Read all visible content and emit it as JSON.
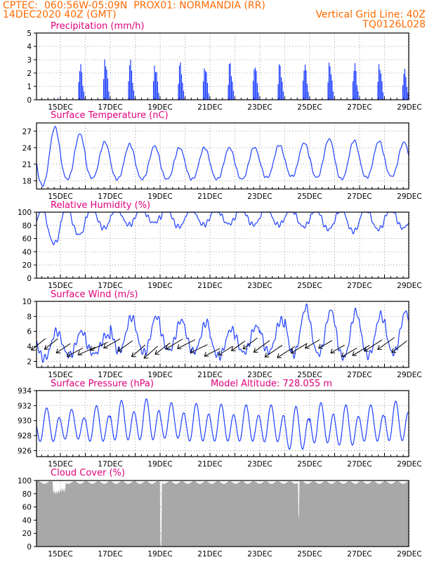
{
  "header": {
    "line1_left": "CPTEC:  060:56W-05:09N  PROX01: NORMANDIA (RR)",
    "line2_left": "14DEC2020 40Z (GMT)",
    "line2_right": "Vertical Grid Line: 40Z",
    "line3_right": "TQ0126L028"
  },
  "colors": {
    "header": "#ff6a00",
    "title": "#e0007a",
    "series": "#2040ff",
    "bars": "#2040ff",
    "cloud": "#a8a8a8",
    "arrow": "#000000",
    "grid": "#888888"
  },
  "chart_data": [
    {
      "id": "precip",
      "type": "bar",
      "title": "Precipitation (mm/h)",
      "ylim": [
        0,
        5
      ],
      "yticks": [
        "0",
        "1",
        "2",
        "3",
        "4",
        "5"
      ],
      "xlabels": [
        "15DEC",
        "17DEC",
        "19DEC",
        "21DEC",
        "23DEC",
        "25DEC",
        "27DEC",
        "29DEC"
      ],
      "daily_peaks_mm_h": [
        0.3,
        2.8,
        3.2,
        3.1,
        2.8,
        2.9,
        2.7,
        2.9,
        2.8,
        2.8,
        2.9,
        2.9,
        2.9,
        2.8,
        2.4,
        1.3
      ]
    },
    {
      "id": "temp",
      "type": "line",
      "title": "Surface Temperature (nC)",
      "ylim": [
        16.5,
        28.5
      ],
      "yticks": [
        "18",
        "21",
        "24",
        "27"
      ],
      "xlabels": [
        "15DEC",
        "17DEC",
        "19DEC",
        "21DEC",
        "23DEC",
        "25DEC",
        "27DEC",
        "29DEC"
      ],
      "daily_max": [
        27.7,
        26.5,
        25.0,
        24.6,
        24.3,
        24.0,
        24.0,
        24.0,
        24.1,
        24.5,
        24.9,
        25.6,
        25.3,
        25.2,
        25.0,
        25.0
      ],
      "daily_min": [
        17.2,
        18.3,
        18.5,
        18.3,
        18.3,
        18.3,
        18.3,
        18.3,
        18.3,
        18.6,
        18.8,
        18.6,
        18.3,
        18.6,
        18.8,
        18.8
      ]
    },
    {
      "id": "rh",
      "type": "line",
      "title": "Relative Humidity (%)",
      "ylim": [
        0,
        100
      ],
      "yticks": [
        "0",
        "20",
        "40",
        "60",
        "80",
        "100"
      ],
      "xlabels": [
        "15DEC",
        "17DEC",
        "19DEC",
        "21DEC",
        "23DEC",
        "25DEC",
        "27DEC",
        "29DEC"
      ],
      "daily_min": [
        47,
        60,
        70,
        75,
        78,
        72,
        75,
        76,
        75,
        75,
        72,
        68,
        65,
        68,
        70,
        72
      ],
      "daily_max": [
        100,
        100,
        100,
        100,
        100,
        100,
        100,
        100,
        100,
        100,
        100,
        100,
        100,
        100,
        100,
        100
      ]
    },
    {
      "id": "wind",
      "type": "line",
      "title": "Surface Wind (m/s)",
      "ylim": [
        1.2,
        10
      ],
      "yticks": [
        "2",
        "4",
        "6",
        "8",
        "10"
      ],
      "xlabels": [
        "15DEC",
        "17DEC",
        "19DEC",
        "21DEC",
        "23DEC",
        "25DEC",
        "27DEC",
        "29DEC"
      ],
      "daily_max": [
        6.0,
        6.0,
        5.5,
        7.9,
        8.0,
        7.5,
        7.2,
        6.3,
        6.7,
        7.5,
        9.2,
        8.8,
        8.6,
        8.2,
        8.6,
        6.0
      ],
      "daily_min": [
        2.4,
        2.8,
        3.0,
        3.4,
        3.2,
        3.5,
        3.3,
        2.7,
        3.2,
        3.3,
        3.0,
        3.0,
        2.5,
        2.8,
        3.1,
        3.5
      ]
    },
    {
      "id": "pressure",
      "type": "line",
      "title": "Surface Pressure (hPa)",
      "subtitle": "Model Altitude: 728.055 m",
      "ylim": [
        925.2,
        934
      ],
      "yticks": [
        "926",
        "928",
        "930",
        "932",
        "934"
      ],
      "xlabels": [
        "15DEC",
        "17DEC",
        "19DEC",
        "21DEC",
        "23DEC",
        "25DEC",
        "27DEC",
        "29DEC"
      ],
      "daily_max": [
        931.7,
        931.5,
        932.0,
        932.7,
        932.9,
        932.4,
        932.3,
        932.2,
        932.1,
        932.1,
        931.9,
        932.4,
        932.1,
        932.1,
        932.6,
        932.6
      ],
      "daily_min": [
        926.6,
        927.0,
        926.6,
        926.7,
        926.7,
        927.0,
        926.6,
        926.6,
        926.6,
        926.5,
        925.4,
        926.3,
        926.0,
        926.6,
        926.6,
        927.0
      ]
    },
    {
      "id": "cloud",
      "type": "area",
      "title": "Cloud Cover (%)",
      "ylim": [
        0,
        100
      ],
      "yticks": [
        "0",
        "20",
        "40",
        "60",
        "80",
        "100"
      ],
      "xlabels": [
        "15DEC",
        "17DEC",
        "19DEC",
        "21DEC",
        "23DEC",
        "25DEC",
        "27DEC",
        "29DEC"
      ],
      "typical_percent": 97,
      "min_percent": 0
    }
  ]
}
